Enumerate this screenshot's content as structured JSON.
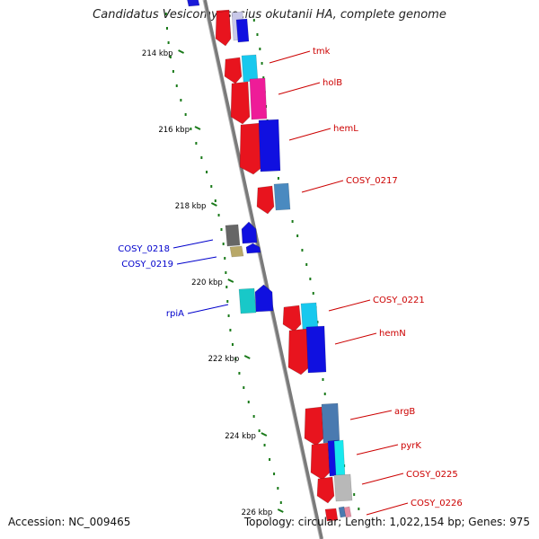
{
  "title": "Candidatus Vesicomyosocius okutanii HA, complete genome",
  "footer": {
    "accession": "Accession: NC_009465",
    "summary": "Topology: circular; Length: 1,022,154 bp; Genes: 975"
  },
  "colors": {
    "backbone": "#808080",
    "gc_ticks": "#1a7a1a",
    "forward_label": "#cc0000",
    "reverse_label": "#0000cc",
    "scale_text": "#000000"
  },
  "scale_labels": [
    "214 kbp",
    "216 kbp",
    "218 kbp",
    "220 kbp",
    "222 kbp",
    "224 kbp",
    "226 kbp"
  ],
  "genes": [
    {
      "name": "tmk",
      "strand": "forward"
    },
    {
      "name": "holB",
      "strand": "forward"
    },
    {
      "name": "hemL",
      "strand": "forward"
    },
    {
      "name": "COSY_0217",
      "strand": "forward"
    },
    {
      "name": "COSY_0218",
      "strand": "reverse"
    },
    {
      "name": "COSY_0219",
      "strand": "reverse"
    },
    {
      "name": "rpiA",
      "strand": "reverse"
    },
    {
      "name": "COSY_0221",
      "strand": "forward"
    },
    {
      "name": "hemN",
      "strand": "forward"
    },
    {
      "name": "argB",
      "strand": "forward"
    },
    {
      "name": "pyrK",
      "strand": "forward"
    },
    {
      "name": "COSY_0225",
      "strand": "forward"
    },
    {
      "name": "COSY_0226",
      "strand": "forward"
    }
  ]
}
